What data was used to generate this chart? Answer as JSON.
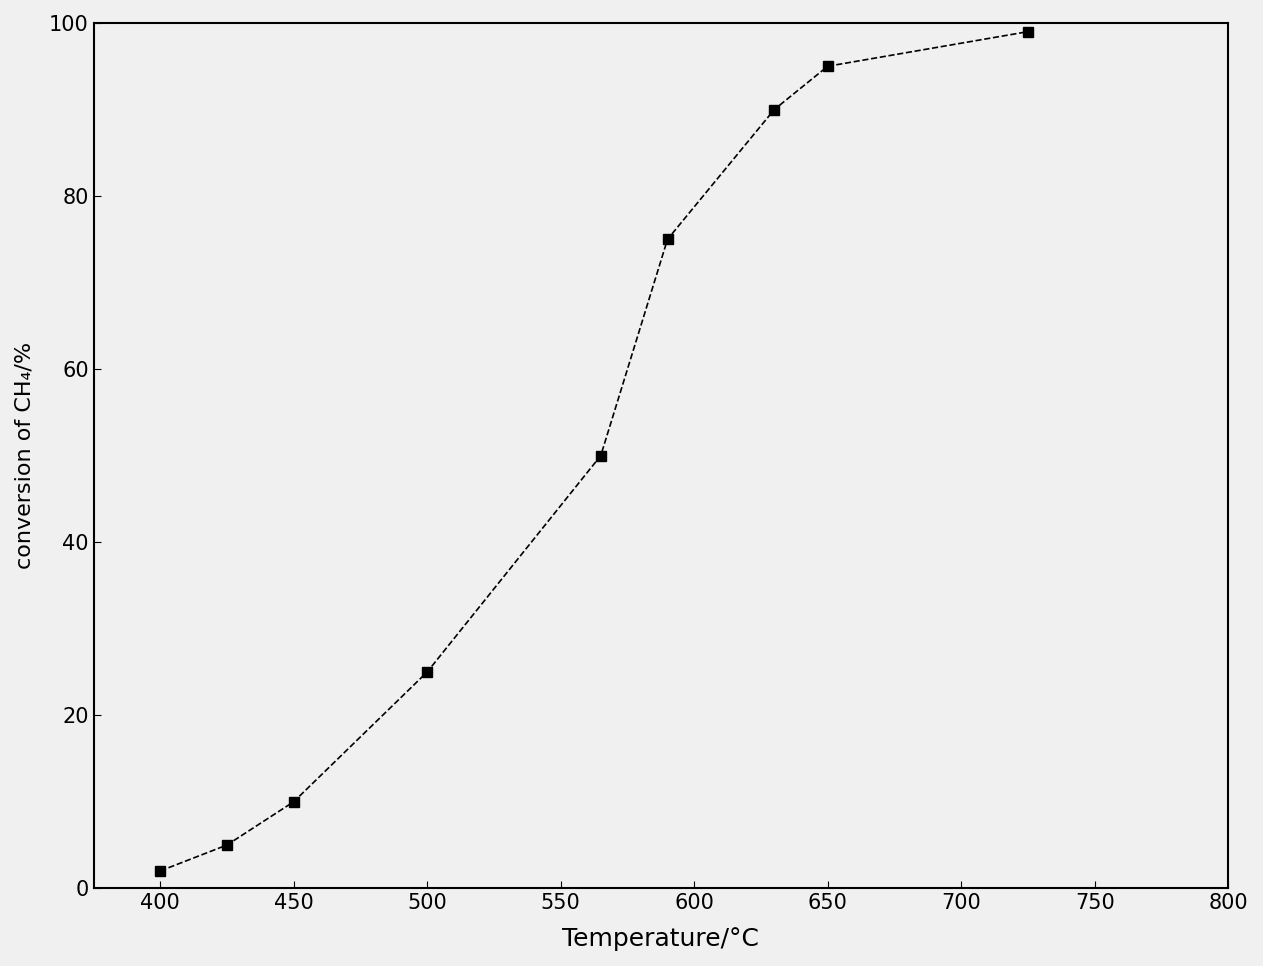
{
  "x": [
    400,
    425,
    450,
    500,
    565,
    590,
    630,
    650,
    725
  ],
  "y": [
    2,
    5,
    10,
    25,
    50,
    75,
    90,
    95,
    99
  ],
  "xlabel": "Temperature/°C",
  "ylabel": "conversion of CH₄/%",
  "xlim": [
    375,
    800
  ],
  "ylim": [
    0,
    100
  ],
  "xticks": [
    400,
    450,
    500,
    550,
    600,
    650,
    700,
    750,
    800
  ],
  "yticks": [
    0,
    20,
    40,
    60,
    80,
    100
  ],
  "marker": "s",
  "marker_color": "#000000",
  "marker_size": 7,
  "line_color": "#000000",
  "line_style": "--",
  "line_width": 1.2,
  "background_color": "#f0f0f0",
  "xlabel_fontsize": 18,
  "ylabel_fontsize": 16,
  "tick_fontsize": 15
}
